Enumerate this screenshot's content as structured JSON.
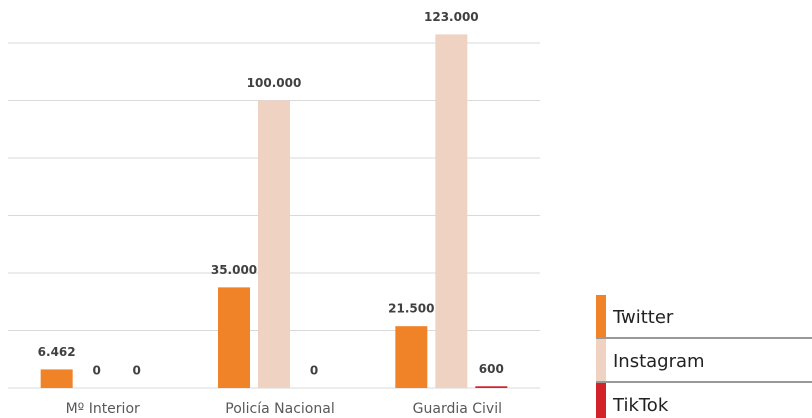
{
  "chart_data": {
    "type": "bar",
    "categories": [
      "Mº Interior",
      "Policía Nacional",
      "Guardia Civil"
    ],
    "series": [
      {
        "name": "Twitter",
        "color": "#f08228",
        "values": [
          6462,
          35000,
          21500
        ],
        "value_labels": [
          "6.462",
          "35.000",
          "21.500"
        ]
      },
      {
        "name": "Instagram",
        "color": "#f0d2c3",
        "values": [
          0,
          100000,
          123000
        ],
        "value_labels": [
          "0",
          "100.000",
          "123.000"
        ]
      },
      {
        "name": "TikTok",
        "color": "#d2232a",
        "values": [
          0,
          0,
          600
        ],
        "value_labels": [
          "0",
          "0",
          "600"
        ]
      }
    ],
    "ylim": [
      0,
      120000
    ],
    "yticks": [
      0,
      20000,
      40000,
      60000,
      80000,
      100000,
      120000
    ],
    "grid": true,
    "legend": "right"
  }
}
